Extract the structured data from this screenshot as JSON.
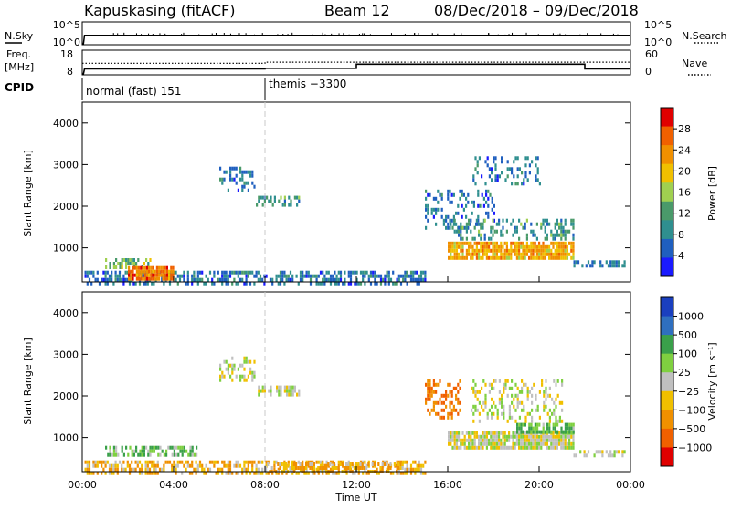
{
  "header": {
    "title": "Kapuskasing (fitACF)",
    "beam": "Beam 12",
    "date_range": "08/Dec/2018 – 09/Dec/2018"
  },
  "colors": {
    "axis": "#000000",
    "dashed_line": "#b0b0b0",
    "power_bar": [
      "#1a1aff",
      "#1f5fbf",
      "#2f8f8f",
      "#4a9a6a",
      "#a0d050",
      "#f0c000",
      "#f09000",
      "#f06000",
      "#e00000"
    ],
    "velocity_bar": [
      "#1a3fbf",
      "#2f6fbf",
      "#3aa04a",
      "#7fd040",
      "#c0c0c0",
      "#f0c000",
      "#f09000",
      "#f06000",
      "#e00000"
    ]
  },
  "nsky_panel": {
    "left_label": "N.Sky",
    "right_label": "N.Search",
    "left_ticks": [
      "10^5",
      "10^0"
    ],
    "right_ticks": [
      "10^5",
      "10^0"
    ]
  },
  "freq_panel": {
    "left_label_line1": "Freq.",
    "left_label_line2": "[MHz]",
    "right_label": "Nave",
    "left_ticks": [
      "18",
      "8"
    ],
    "right_ticks": [
      "60",
      "0"
    ]
  },
  "cpid_panel": {
    "label": "CPID",
    "segments": [
      "normal (fast) 151",
      "themis −3300"
    ]
  },
  "power_panel": {
    "ylabel": "Slant Range [km]",
    "colorbar_label": "Power [dB]",
    "colorbar_ticks": [
      "28",
      "24",
      "20",
      "16",
      "12",
      "8",
      "4"
    ]
  },
  "velocity_panel": {
    "ylabel": "Slant Range [km]",
    "colorbar_label": "Velocity [m s⁻¹]",
    "colorbar_ticks": [
      "1000",
      "500",
      "100",
      "25",
      "−25",
      "−100",
      "−500",
      "−1000"
    ]
  },
  "xaxis": {
    "label": "Time UT",
    "ticks": [
      "00:00",
      "04:00",
      "08:00",
      "12:00",
      "16:00",
      "20:00",
      "00:00"
    ]
  },
  "chart_data": [
    {
      "type": "line",
      "title": "N.Sky / N.Search",
      "x_hours": [
        0,
        24
      ],
      "ylim": [
        1,
        100000
      ],
      "y_scale": "log",
      "series": [
        {
          "name": "N.Sky",
          "x": [
            0,
            0.05,
            0.1,
            24
          ],
          "y": [
            1,
            1,
            100,
            100
          ]
        }
      ]
    },
    {
      "type": "line",
      "title": "Freq. / Nave",
      "xlim": [
        0,
        24
      ],
      "ylim": [
        8,
        18
      ],
      "series": [
        {
          "name": "Freq.",
          "x": [
            0,
            0.05,
            0.1,
            8,
            8,
            12,
            12,
            22,
            22,
            24
          ],
          "y": [
            8,
            8,
            10.2,
            10.2,
            10.5,
            10.5,
            12.3,
            12.3,
            10.2,
            10.2
          ]
        },
        {
          "name": "Nave",
          "x": [
            0,
            0.1,
            8,
            8,
            24
          ],
          "y": [
            28,
            28,
            28,
            31,
            31
          ]
        }
      ]
    },
    {
      "type": "heatmap",
      "title": "Power [dB]",
      "xlim": [
        0,
        24
      ],
      "ylim": [
        180,
        4500
      ],
      "clim": [
        0,
        32
      ],
      "regions": [
        {
          "x_start": 0.1,
          "x_end": 15,
          "r_min": 180,
          "r_max": 450,
          "power": 8,
          "density": 0.55
        },
        {
          "x_start": 1,
          "x_end": 3,
          "r_min": 550,
          "r_max": 750,
          "power": 16,
          "density": 0.5
        },
        {
          "x_start": 2,
          "x_end": 4,
          "r_min": 280,
          "r_max": 560,
          "power": 28,
          "density": 0.9
        },
        {
          "x_start": 6,
          "x_end": 7.5,
          "r_min": 2350,
          "r_max": 2950,
          "power": 8,
          "density": 0.35
        },
        {
          "x_start": 7.6,
          "x_end": 9.5,
          "r_min": 2000,
          "r_max": 2250,
          "power": 12,
          "density": 0.55
        },
        {
          "x_start": 15,
          "x_end": 18,
          "r_min": 1500,
          "r_max": 2400,
          "power": 8,
          "density": 0.3
        },
        {
          "x_start": 16,
          "x_end": 21.5,
          "r_min": 750,
          "r_max": 1150,
          "power": 24,
          "density": 0.85
        },
        {
          "x_start": 16,
          "x_end": 21.5,
          "r_min": 1200,
          "r_max": 1700,
          "power": 12,
          "density": 0.35
        },
        {
          "x_start": 17,
          "x_end": 20,
          "r_min": 2500,
          "r_max": 3200,
          "power": 8,
          "density": 0.25
        },
        {
          "x_start": 21.5,
          "x_end": 23.8,
          "r_min": 550,
          "r_max": 700,
          "power": 8,
          "density": 0.4
        }
      ]
    },
    {
      "type": "heatmap",
      "title": "Velocity [m s⁻¹]",
      "xlim": [
        0,
        24
      ],
      "ylim": [
        180,
        4500
      ],
      "clim": [
        -1000,
        1000
      ],
      "regions": [
        {
          "x_start": 0.1,
          "x_end": 15,
          "r_min": 180,
          "r_max": 450,
          "velocity": -60,
          "density": 0.55
        },
        {
          "x_start": 1,
          "x_end": 5,
          "r_min": 550,
          "r_max": 800,
          "velocity": 60,
          "density": 0.6
        },
        {
          "x_start": 8,
          "x_end": 14,
          "r_min": 180,
          "r_max": 400,
          "velocity": -60,
          "density": 0.6
        },
        {
          "x_start": 6,
          "x_end": 7.5,
          "r_min": 2350,
          "r_max": 2950,
          "velocity": 0,
          "density": 0.35
        },
        {
          "x_start": 7.6,
          "x_end": 9.5,
          "r_min": 2000,
          "r_max": 2250,
          "velocity": 0,
          "density": 0.55
        },
        {
          "x_start": 15,
          "x_end": 16.5,
          "r_min": 1500,
          "r_max": 2400,
          "velocity": -300,
          "density": 0.4
        },
        {
          "x_start": 16,
          "x_end": 21.5,
          "r_min": 750,
          "r_max": 1150,
          "velocity": 0,
          "density": 0.85
        },
        {
          "x_start": 19,
          "x_end": 21.5,
          "r_min": 1100,
          "r_max": 1350,
          "velocity": 80,
          "density": 0.7
        },
        {
          "x_start": 17,
          "x_end": 21,
          "r_min": 1400,
          "r_max": 2400,
          "velocity": 0,
          "density": 0.3
        },
        {
          "x_start": 21.5,
          "x_end": 23.8,
          "r_min": 550,
          "r_max": 700,
          "velocity": 0,
          "density": 0.4
        }
      ]
    }
  ]
}
